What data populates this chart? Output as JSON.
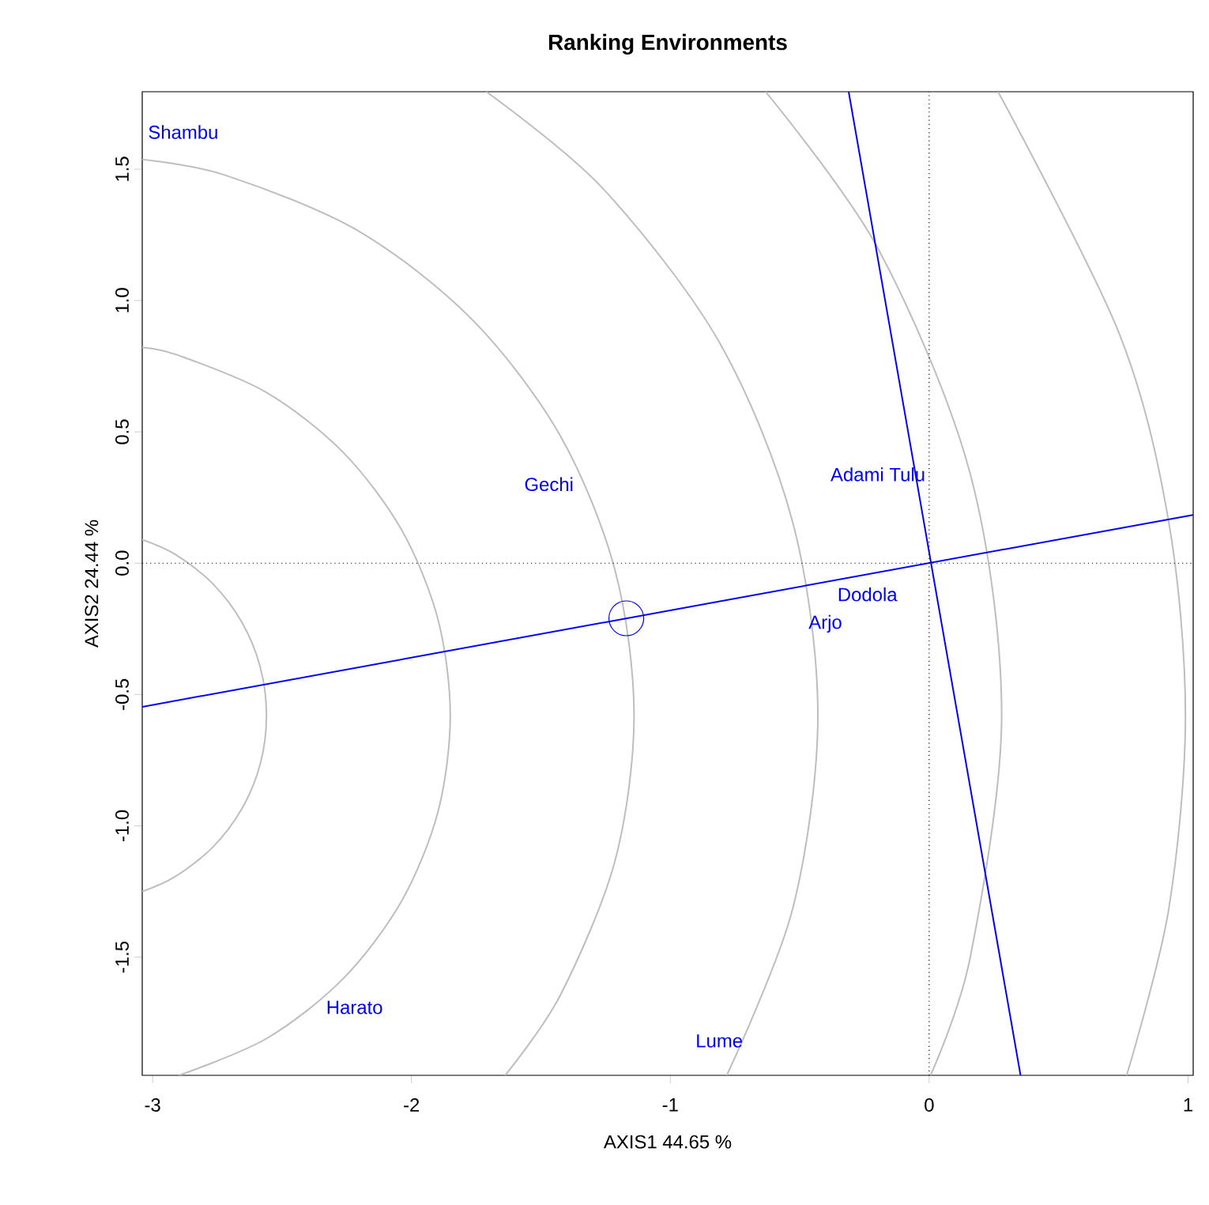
{
  "chart_data": {
    "type": "line",
    "title": "Ranking Environments",
    "xlabel": "AXIS1 44.65 %",
    "ylabel": "AXIS2 24.44 %",
    "xlim": [
      -3.04,
      1.02
    ],
    "ylim": [
      -1.95,
      1.795
    ],
    "xticks": [
      -3,
      -2,
      -1,
      0,
      1
    ],
    "yticks": [
      -1.5,
      {
        "value": -1.0,
        "label": "-1.0"
      },
      -0.5,
      {
        "value": 0.0,
        "label": "0.0"
      },
      0.5,
      {
        "value": 1.0,
        "label": "1.0"
      },
      1.5
    ],
    "series": [
      {
        "color": "#bebebe",
        "x": [
          -3.04,
          -2.915,
          -2.768,
          -2.655,
          -2.584,
          -2.56,
          -2.584,
          -2.655,
          -2.768,
          -2.915,
          -3.04
        ],
        "values": [
          -1.25,
          -1.195,
          -1.082,
          -0.935,
          -0.764,
          -0.58,
          -0.396,
          -0.225,
          -0.078,
          0.035,
          0.09
        ]
      },
      {
        "color": "#bebebe",
        "x": [
          -2.898,
          -2.56,
          -2.266,
          -2.04,
          -1.898,
          -1.85,
          -1.898,
          -2.04,
          -2.266,
          -2.56,
          -2.902,
          -3.04
        ],
        "values": [
          -1.95,
          -1.81,
          -1.584,
          -1.29,
          -0.948,
          -0.58,
          -0.212,
          0.13,
          0.424,
          0.65,
          0.792,
          0.821
        ]
      },
      {
        "color": "#bebebe",
        "x": [
          -1.638,
          -1.425,
          -1.213,
          -1.14,
          -1.213,
          -1.425,
          -1.764,
          -2.205,
          -2.719,
          -3.04
        ],
        "values": [
          -1.95,
          -1.645,
          -1.131,
          -0.58,
          -0.029,
          0.485,
          0.926,
          1.265,
          1.477,
          1.537
        ]
      },
      {
        "color": "#bebebe",
        "x": [
          -0.782,
          -0.527,
          -0.43,
          -0.527,
          -0.81,
          -1.262,
          -1.711
        ],
        "values": [
          -1.95,
          -1.315,
          -0.58,
          0.155,
          0.84,
          1.428,
          1.795
        ]
      },
      {
        "color": "#bebebe",
        "x": [
          0.005,
          0.159,
          0.28,
          0.159,
          -0.196,
          -0.632
        ],
        "values": [
          -1.95,
          -1.499,
          -0.58,
          0.339,
          1.195,
          1.795
        ]
      },
      {
        "color": "#bebebe",
        "x": [
          0.763,
          0.925,
          0.99,
          0.925,
          0.733,
          0.266
        ],
        "values": [
          -1.95,
          -1.32,
          -0.58,
          0.16,
          0.877,
          1.795
        ]
      },
      {
        "color": "#0000ff",
        "x": [
          -3.04,
          1.02
        ],
        "values": [
          -0.547,
          0.184
        ]
      },
      {
        "color": "#0000ff",
        "x": [
          -0.311,
          0.353
        ],
        "values": [
          1.795,
          -1.95
        ]
      },
      {
        "color": "#000000",
        "line_style": "dotted",
        "x": [
          0,
          0
        ],
        "values": [
          -1.95,
          1.795
        ]
      },
      {
        "color": "#000000",
        "line_style": "dotted",
        "x": [
          -3.04,
          1.02
        ],
        "values": [
          0,
          0
        ]
      },
      {
        "type": "scatter",
        "color": "#0000ff",
        "marker": "circle",
        "x": [
          -1.17
        ],
        "values": [
          -0.21
        ]
      }
    ],
    "annotations": [
      "Shambu",
      "Gechi",
      "Adami Tulu",
      "Dodola",
      "Arjo",
      "Harato",
      "Lume"
    ],
    "grid": false
  }
}
